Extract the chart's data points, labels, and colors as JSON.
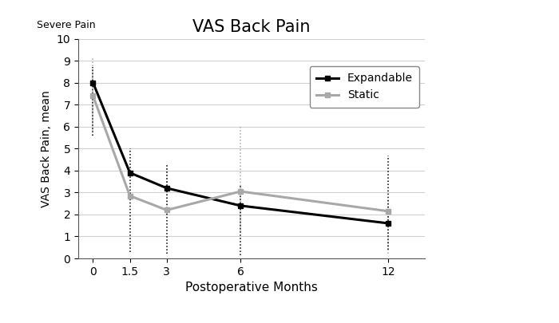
{
  "title": "VAS Back Pain",
  "xlabel": "Postoperative Months",
  "ylabel": "VAS Back Pain, mean",
  "x": [
    0,
    1.5,
    3,
    6,
    12
  ],
  "expandable_y": [
    8.0,
    3.9,
    3.2,
    2.4,
    1.6
  ],
  "static_y": [
    7.4,
    2.85,
    2.2,
    3.05,
    2.15
  ],
  "expandable_upper": [
    8.7,
    5.0,
    4.3,
    3.3,
    4.7
  ],
  "expandable_lower": [
    5.6,
    0.3,
    0.2,
    0.15,
    0.4
  ],
  "static_upper": [
    9.1,
    3.0,
    4.2,
    6.0,
    2.7
  ],
  "static_lower": [
    5.8,
    2.8,
    2.0,
    1.25,
    0.2
  ],
  "expandable_color": "#000000",
  "static_color": "#a8a8a8",
  "ylim": [
    0,
    10
  ],
  "yticks": [
    0,
    1,
    2,
    3,
    4,
    5,
    6,
    7,
    8,
    9,
    10
  ],
  "xticks": [
    0,
    1.5,
    3,
    6,
    12
  ],
  "xtick_labels": [
    "0",
    "1.5",
    "3",
    "6",
    "12"
  ],
  "severe_pain_label": "Severe Pain",
  "legend_labels": [
    "Expandable",
    "Static"
  ],
  "background_color": "#ffffff",
  "linewidth_main": 2.2,
  "linewidth_err": 1.1,
  "marker_size": 5
}
